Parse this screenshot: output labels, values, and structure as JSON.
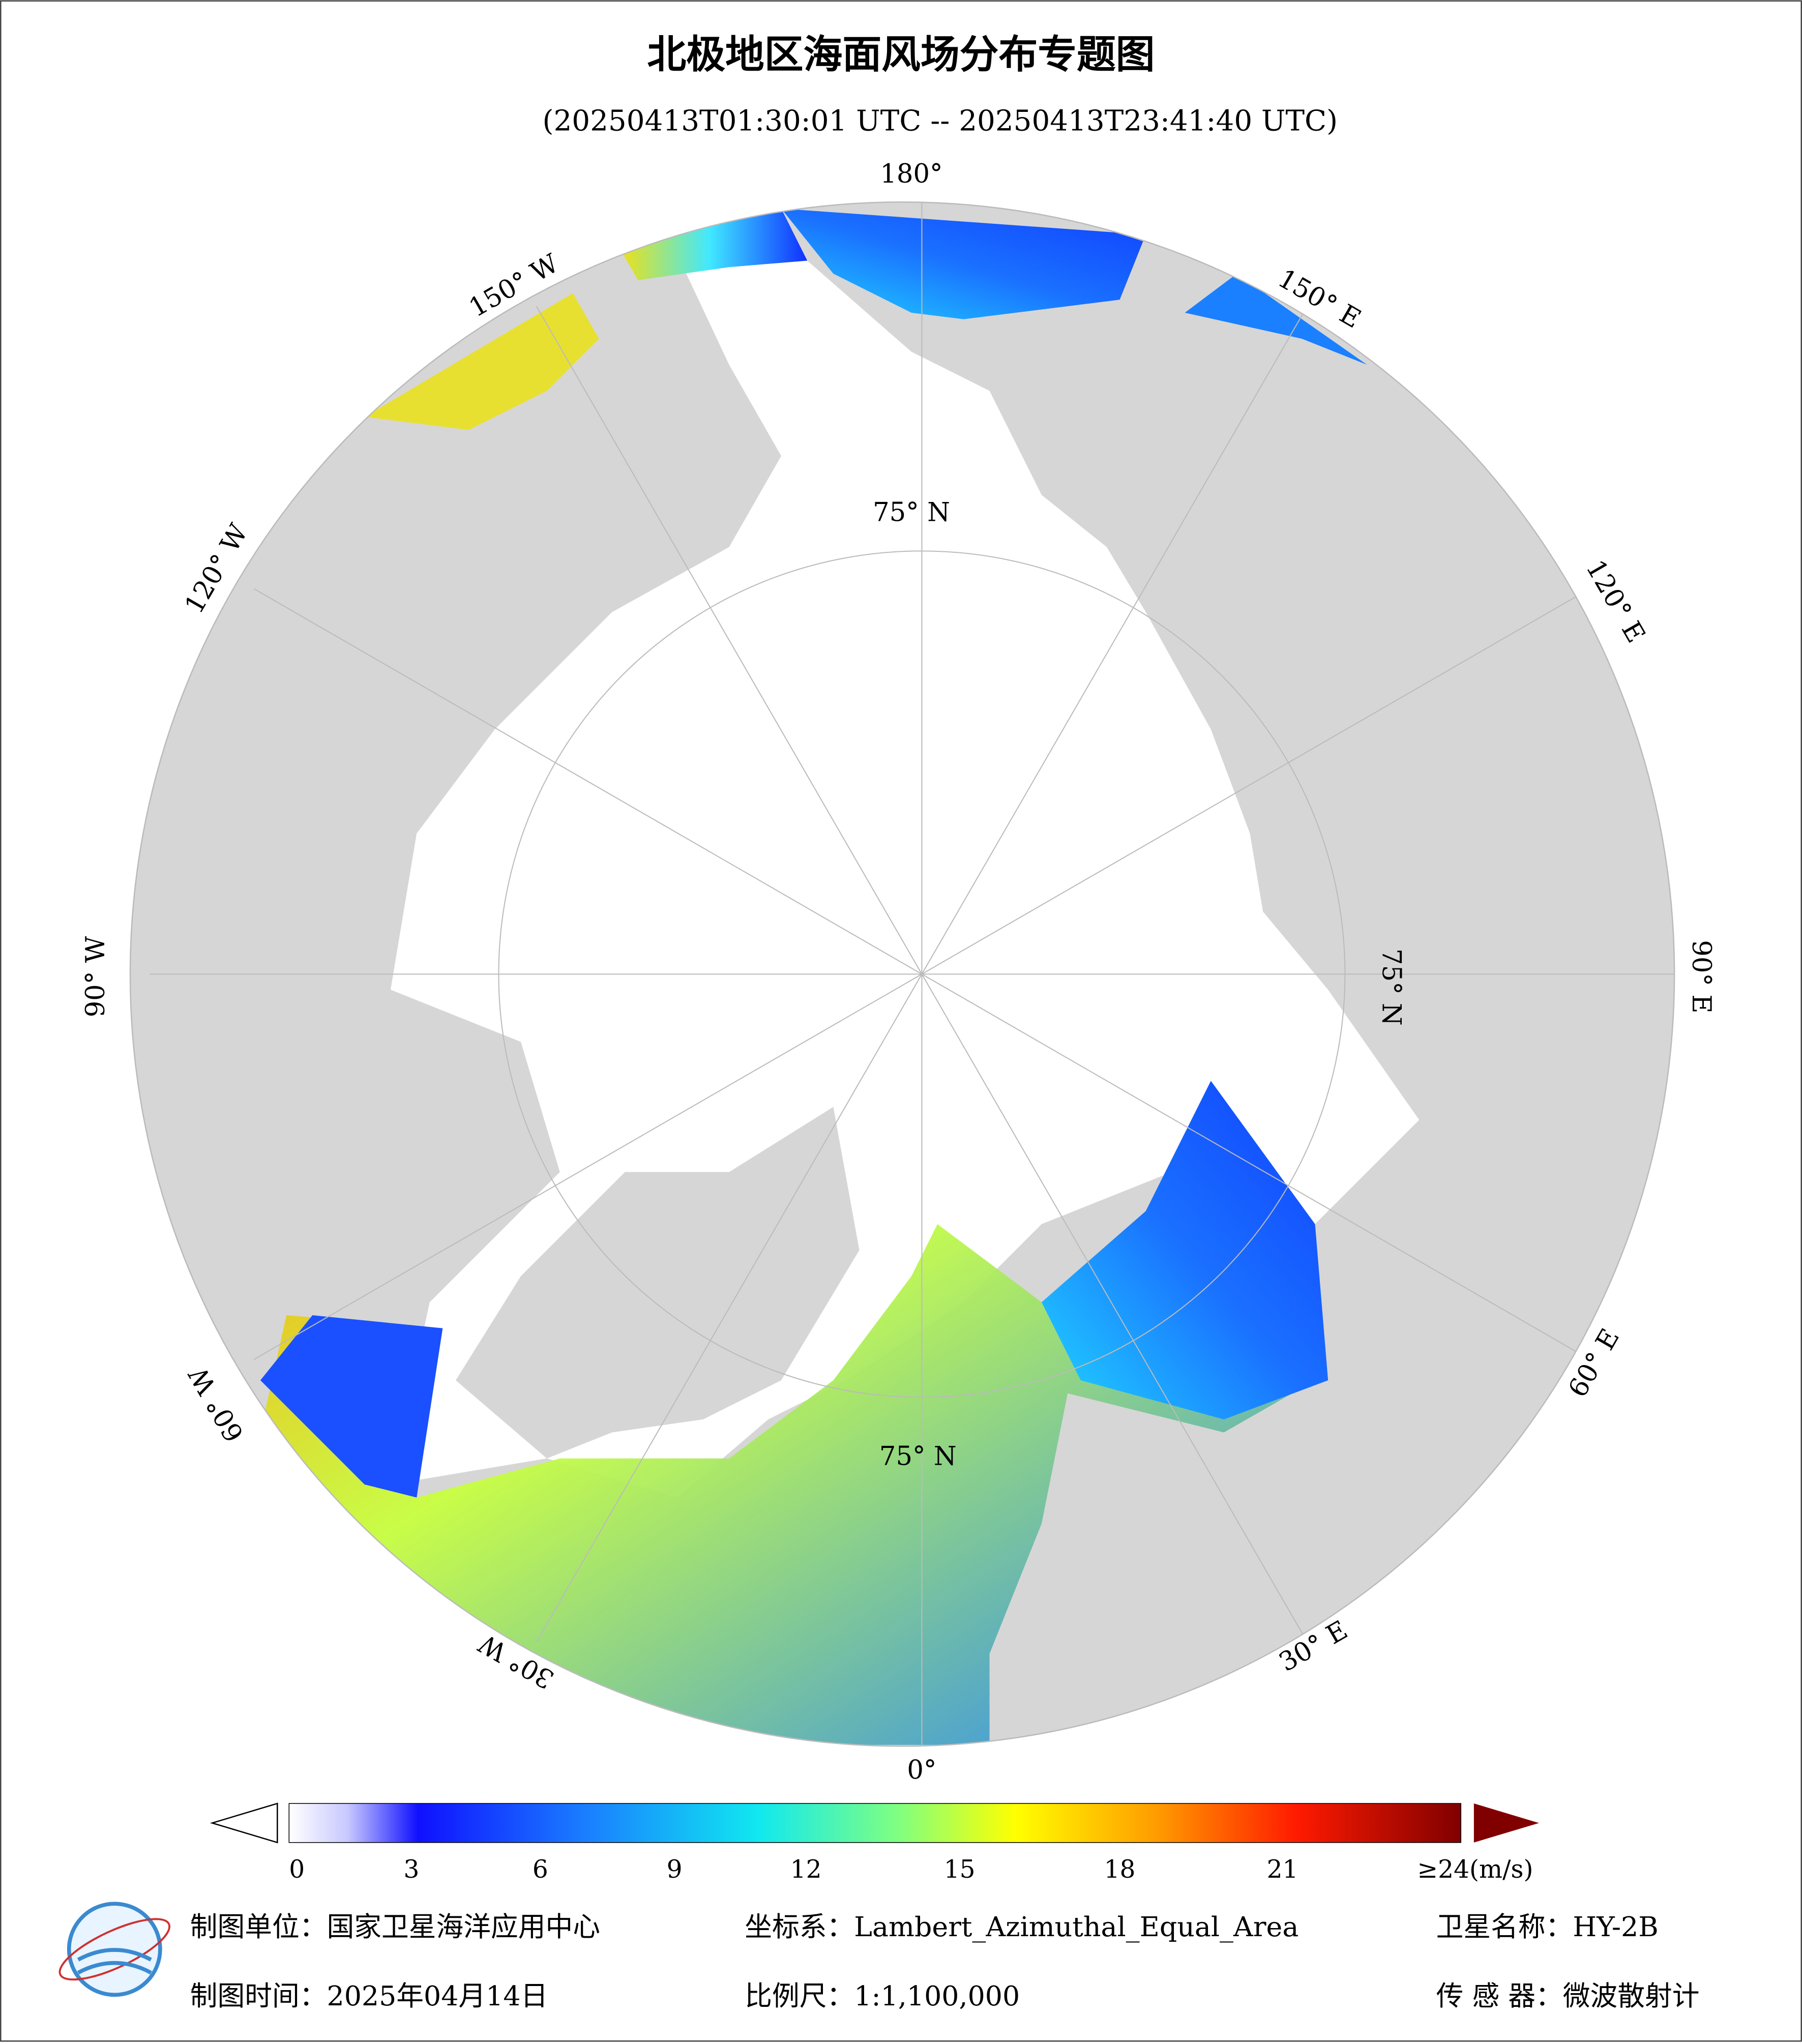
{
  "title": "北极地区海面风场分布专题图",
  "subtitle": "(20250413T01:30:01 UTC -- 20250413T23:41:40 UTC)",
  "map": {
    "longitude_labels": [
      "180°",
      "150° E",
      "120° E",
      "90° E",
      "60° E",
      "30° E",
      "0°",
      "30° W",
      "60° W",
      "90° W",
      "120° W",
      "150° W"
    ],
    "latitude_label": "75° N"
  },
  "colorbar": {
    "ticks": [
      0,
      3,
      6,
      9,
      12,
      15,
      18,
      21
    ],
    "max_label": "≥24(m/s)"
  },
  "footer": {
    "unit": "制图单位：国家卫星海洋应用中心",
    "crs": "坐标系：Lambert_Azimuthal_Equal_Area",
    "satellite": "卫星名称：HY-2B",
    "date": "制图时间：2025年04月14日",
    "scale": "比例尺：1:1,100,000",
    "sensor": "传 感 器：微波散射计"
  }
}
